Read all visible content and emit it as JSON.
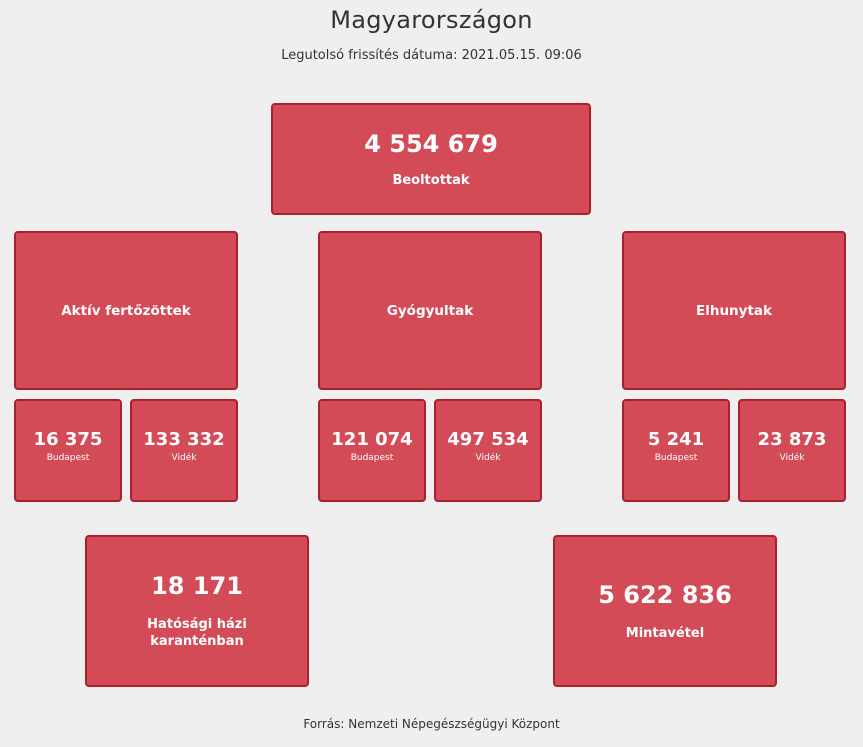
{
  "header": {
    "title": "Magyarországon",
    "updated": "Legutolsó frissítés dátuma: 2021.05.15. 09:06"
  },
  "vaccinated": {
    "value": "4 554 679",
    "label": "Beoltottak"
  },
  "active": {
    "label": "Aktív fertőzöttek",
    "budapest": {
      "value": "16 375",
      "label": "Budapest"
    },
    "videk": {
      "value": "133 332",
      "label": "Vidék"
    }
  },
  "recovered": {
    "label": "Gyógyultak",
    "budapest": {
      "value": "121 074",
      "label": "Budapest"
    },
    "videk": {
      "value": "497 534",
      "label": "Vidék"
    }
  },
  "deceased": {
    "label": "Elhunytak",
    "budapest": {
      "value": "5 241",
      "label": "Budapest"
    },
    "videk": {
      "value": "23 873",
      "label": "Vidék"
    }
  },
  "quarantine": {
    "value": "18 171",
    "label_line1": "Hatósági házi",
    "label_line2": "karanténban"
  },
  "sampling": {
    "value": "5 622 836",
    "label": "Mintavétel"
  },
  "footer": {
    "source": "Forrás: Nemzeti Népegészségügyi Központ"
  },
  "colors": {
    "card_fill": "#d44b58",
    "card_border": "#a8212d",
    "background": "#efefef"
  }
}
